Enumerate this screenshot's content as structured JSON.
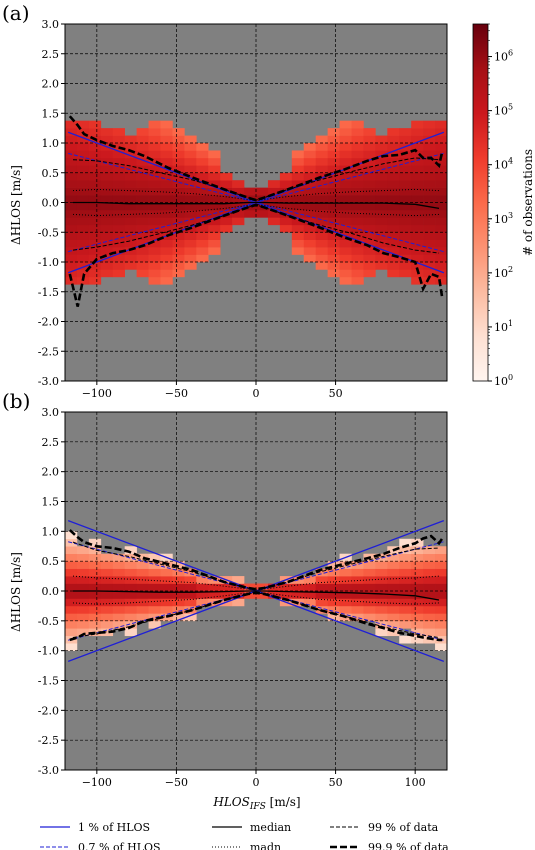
{
  "figure": {
    "legend": [
      {
        "label": "1 % of HLOS",
        "style": "solid",
        "color": "#1f1fd6"
      },
      {
        "label": "0.7 % of HLOS",
        "style": "dashed",
        "color": "#1f1fd6"
      },
      {
        "label": "median",
        "style": "solid",
        "color": "#000000"
      },
      {
        "label": "madn",
        "style": "dotted",
        "color": "#000000"
      },
      {
        "label": "99 % of data",
        "style": "dashed",
        "color": "#000000"
      },
      {
        "label": "99.9 % of data",
        "style": "dashed-bold",
        "color": "#000000"
      }
    ],
    "colors": {
      "background": "#808080",
      "grid": "#000000",
      "hlos_lines": "#1f1fd6",
      "cmap_low": "#fff5f0",
      "cmap_high": "#67000d"
    }
  },
  "chart_data": [
    {
      "type": "heatmap",
      "panel_label": "(a)",
      "xlabel": "",
      "ylabel": "ΔHLOS [m/s]",
      "xlim": [
        -120,
        120
      ],
      "ylim": [
        -3.0,
        3.0
      ],
      "x_ticks": [
        -100,
        -50,
        0,
        50
      ],
      "y_ticks": [
        -3.0,
        -2.5,
        -2.0,
        -1.5,
        -1.0,
        -0.5,
        0.0,
        0.5,
        1.0,
        1.5,
        2.0,
        2.5,
        3.0
      ],
      "grid": true,
      "bin_width": 7.5,
      "bin_height": 0.125,
      "hlos_lines": {
        "one_percent_slope": 0.01,
        "point_seven_percent_slope": 0.007
      },
      "colorbar": {
        "label": "# of observations",
        "scale": "log",
        "ticks": [
          "10^0",
          "10^1",
          "10^2",
          "10^3",
          "10^4",
          "10^5",
          "10^6"
        ],
        "range": [
          1,
          4000000
        ]
      },
      "series": [
        {
          "name": "median",
          "x": [
            -115,
            -100,
            -80,
            -60,
            -40,
            -20,
            -5,
            0,
            5,
            20,
            40,
            60,
            80,
            100,
            115
          ],
          "y": [
            0.0,
            0.0,
            -0.02,
            -0.02,
            -0.02,
            -0.02,
            0.0,
            0.0,
            0.0,
            -0.01,
            -0.01,
            -0.01,
            -0.01,
            -0.03,
            -0.1
          ]
        },
        {
          "name": "madn",
          "x": [
            -115,
            -100,
            -80,
            -60,
            -40,
            -20,
            -5,
            0,
            5,
            20,
            40,
            60,
            80,
            100,
            115
          ],
          "y_upper": [
            0.2,
            0.22,
            0.2,
            0.18,
            0.15,
            0.1,
            0.05,
            0.03,
            0.05,
            0.1,
            0.15,
            0.18,
            0.2,
            0.22,
            0.2
          ],
          "y_lower": [
            -0.2,
            -0.22,
            -0.2,
            -0.18,
            -0.15,
            -0.1,
            -0.05,
            -0.03,
            -0.05,
            -0.1,
            -0.15,
            -0.18,
            -0.2,
            -0.22,
            -0.2
          ]
        },
        {
          "name": "99 % of data",
          "x": [
            -115,
            -100,
            -80,
            -60,
            -40,
            -20,
            -5,
            0,
            5,
            20,
            40,
            60,
            80,
            100,
            115
          ],
          "y_upper": [
            0.72,
            0.7,
            0.62,
            0.5,
            0.38,
            0.22,
            0.08,
            0.04,
            0.08,
            0.22,
            0.38,
            0.52,
            0.65,
            0.75,
            0.72
          ],
          "y_lower": [
            -0.8,
            -0.75,
            -0.65,
            -0.52,
            -0.38,
            -0.22,
            -0.08,
            -0.04,
            -0.08,
            -0.22,
            -0.38,
            -0.52,
            -0.68,
            -0.8,
            -0.85
          ]
        },
        {
          "name": "99.9 % of data",
          "x": [
            -117,
            -112,
            -108,
            -100,
            -90,
            -80,
            -70,
            -55,
            -40,
            -20,
            -5,
            0,
            5,
            20,
            40,
            55,
            70,
            80,
            90,
            100,
            105,
            110,
            115,
            117
          ],
          "y_upper": [
            1.45,
            1.3,
            1.15,
            1.05,
            0.95,
            0.88,
            0.78,
            0.58,
            0.42,
            0.22,
            0.08,
            0.04,
            0.08,
            0.22,
            0.42,
            0.55,
            0.7,
            0.78,
            0.8,
            0.88,
            0.75,
            0.75,
            0.62,
            0.85
          ],
          "y_lower": [
            -1.2,
            -1.75,
            -1.2,
            -0.95,
            -0.85,
            -0.8,
            -0.72,
            -0.55,
            -0.42,
            -0.22,
            -0.08,
            -0.04,
            -0.08,
            -0.22,
            -0.42,
            -0.58,
            -0.72,
            -0.85,
            -0.92,
            -1.0,
            -1.45,
            -1.2,
            -1.25,
            -1.6
          ]
        }
      ]
    },
    {
      "type": "heatmap",
      "panel_label": "(b)",
      "xlabel": "HLOS_IFS [m/s]",
      "ylabel": "ΔHLOS [m/s]",
      "xlim": [
        -120,
        120
      ],
      "ylim": [
        -3.0,
        3.0
      ],
      "x_ticks": [
        -100,
        -50,
        0,
        50,
        100
      ],
      "y_ticks": [
        -3.0,
        -2.5,
        -2.0,
        -1.5,
        -1.0,
        -0.5,
        0.0,
        0.5,
        1.0,
        1.5,
        2.0,
        2.5,
        3.0
      ],
      "grid": true,
      "bin_width": 7.5,
      "bin_height": 0.125,
      "hlos_lines": {
        "one_percent_slope": 0.01,
        "point_seven_percent_slope": 0.007
      },
      "series": [
        {
          "name": "median",
          "x": [
            -115,
            -100,
            -80,
            -60,
            -40,
            -20,
            -5,
            0,
            5,
            20,
            40,
            60,
            80,
            100,
            115
          ],
          "y": [
            0.0,
            0.0,
            -0.01,
            -0.02,
            -0.02,
            -0.01,
            0.0,
            0.0,
            0.0,
            -0.01,
            -0.02,
            -0.03,
            -0.05,
            -0.08,
            -0.15
          ]
        },
        {
          "name": "madn",
          "x": [
            -115,
            -100,
            -80,
            -60,
            -40,
            -20,
            -5,
            0,
            5,
            20,
            40,
            60,
            80,
            100,
            115
          ],
          "y_upper": [
            0.25,
            0.22,
            0.2,
            0.17,
            0.14,
            0.08,
            0.03,
            0.02,
            0.03,
            0.08,
            0.14,
            0.17,
            0.2,
            0.22,
            0.25
          ],
          "y_lower": [
            -0.2,
            -0.22,
            -0.2,
            -0.17,
            -0.14,
            -0.08,
            -0.03,
            -0.02,
            -0.03,
            -0.08,
            -0.14,
            -0.17,
            -0.2,
            -0.22,
            -0.2
          ]
        },
        {
          "name": "99 % of data",
          "x": [
            -115,
            -100,
            -80,
            -60,
            -40,
            -20,
            -5,
            0,
            5,
            20,
            40,
            60,
            80,
            100,
            115
          ],
          "y_upper": [
            0.82,
            0.68,
            0.58,
            0.45,
            0.32,
            0.15,
            0.05,
            0.03,
            0.05,
            0.15,
            0.32,
            0.45,
            0.58,
            0.7,
            0.72
          ],
          "y_lower": [
            -0.78,
            -0.72,
            -0.6,
            -0.45,
            -0.32,
            -0.15,
            -0.05,
            -0.03,
            -0.05,
            -0.15,
            -0.32,
            -0.45,
            -0.6,
            -0.72,
            -0.78
          ]
        },
        {
          "name": "99.9 % of data",
          "x": [
            -117,
            -112,
            -108,
            -100,
            -90,
            -80,
            -70,
            -55,
            -40,
            -20,
            -5,
            0,
            5,
            20,
            40,
            55,
            70,
            80,
            90,
            100,
            105,
            110,
            115,
            117
          ],
          "y_upper": [
            1.02,
            0.9,
            0.82,
            0.75,
            0.72,
            0.66,
            0.55,
            0.45,
            0.35,
            0.15,
            0.05,
            0.03,
            0.05,
            0.15,
            0.35,
            0.45,
            0.55,
            0.62,
            0.72,
            0.8,
            0.88,
            0.92,
            0.8,
            0.88
          ],
          "y_lower": [
            -0.82,
            -0.78,
            -0.72,
            -0.7,
            -0.68,
            -0.62,
            -0.5,
            -0.42,
            -0.32,
            -0.15,
            -0.05,
            -0.03,
            -0.05,
            -0.15,
            -0.32,
            -0.42,
            -0.55,
            -0.62,
            -0.7,
            -0.75,
            -0.78,
            -0.8,
            -0.82,
            -0.82
          ]
        }
      ]
    }
  ]
}
